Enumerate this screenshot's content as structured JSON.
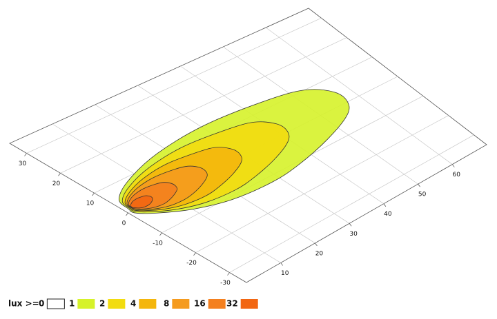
{
  "chart_data": {
    "type": "contour",
    "xlim": [
      0,
      70
    ],
    "ylim": [
      -35,
      35
    ],
    "xticks": [
      10,
      20,
      30,
      40,
      50,
      60
    ],
    "yticks": [
      -30,
      -20,
      -10,
      0,
      10,
      20,
      30
    ],
    "grid": true,
    "legend": {
      "title": "lux >=",
      "base": {
        "name": "0",
        "color": "#ffffff"
      }
    },
    "series": [
      {
        "name": "1",
        "color": "#d6f22a",
        "x": [
          1,
          2,
          8,
          18,
          31,
          45,
          53,
          57,
          57,
          54,
          46,
          36,
          28,
          18,
          10,
          4,
          1
        ],
        "y": [
          1,
          5,
          9,
          12.5,
          14,
          12.5,
          10,
          5,
          0,
          -4,
          -8,
          -11,
          -12,
          -11,
          -8,
          -4,
          -1
        ]
      },
      {
        "name": "2",
        "color": "#f2dc10",
        "x": [
          1.3,
          2,
          6.3,
          13.5,
          22.9,
          33,
          38.7,
          41.6,
          41.6,
          39.4,
          33.7,
          26.5,
          20.7,
          13.5,
          7.8,
          3.4,
          1.3
        ],
        "y": [
          1,
          4,
          7,
          9.6,
          10.8,
          9.6,
          7.8,
          4,
          0.3,
          -2.8,
          -5.8,
          -8,
          -8.8,
          -8,
          -5.8,
          -2.8,
          -0.5
        ]
      },
      {
        "name": "4",
        "color": "#f4b60c",
        "x": [
          1.5,
          2,
          5,
          10,
          16.5,
          23.5,
          27.5,
          29.5,
          29.5,
          28,
          24,
          19,
          15,
          10,
          6,
          3,
          1.5
        ],
        "y": [
          1,
          3.2,
          5.4,
          7.3,
          8.2,
          7.3,
          6,
          3.2,
          0.5,
          -1.8,
          -4,
          -5.6,
          -6.2,
          -5.6,
          -4,
          -1.8,
          -0.1
        ]
      },
      {
        "name": "8",
        "color": "#f59b1e",
        "x": [
          1.7,
          2,
          4,
          7.4,
          11.9,
          16.6,
          19.3,
          20.7,
          20.7,
          19.7,
          17,
          13.6,
          10.8,
          7.4,
          4.7,
          2.7,
          1.7
        ],
        "y": [
          1,
          2.6,
          4.2,
          5.6,
          6.2,
          5.6,
          4.6,
          2.6,
          0.6,
          -1,
          -2.6,
          -3.8,
          -4.2,
          -3.8,
          -2.6,
          -1,
          0.2
        ]
      },
      {
        "name": "16",
        "color": "#f4801f",
        "x": [
          1.8,
          2,
          3.2,
          5.2,
          7.8,
          10.6,
          12.2,
          13,
          13,
          12.4,
          10.8,
          8.8,
          7.2,
          5.2,
          3.6,
          2.4,
          1.8
        ],
        "y": [
          1,
          2.1,
          3.2,
          4.1,
          4.5,
          4.1,
          3.4,
          2.1,
          0.7,
          -0.4,
          -1.4,
          -2.2,
          -2.5,
          -2.2,
          -1.4,
          -0.4,
          0.5
        ]
      },
      {
        "name": "32",
        "color": "#f26612",
        "x": [
          1.9,
          2,
          2.5,
          3.4,
          4.6,
          5.9,
          6.6,
          7,
          7,
          6.7,
          6,
          5.1,
          4.3,
          3.4,
          2.7,
          2.2,
          1.9
        ],
        "y": [
          1,
          1.5,
          2,
          2.5,
          2.7,
          2.5,
          2.2,
          1.5,
          0.9,
          0.4,
          -0.2,
          -0.6,
          -0.7,
          -0.6,
          -0.2,
          0.4,
          0.7
        ]
      }
    ]
  }
}
